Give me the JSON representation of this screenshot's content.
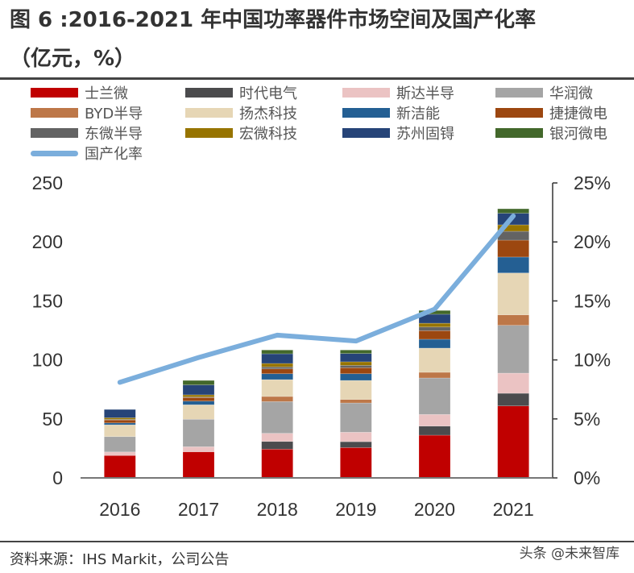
{
  "title_line1": "图 6 :2016-2021 年中国功率器件市场空间及国产化率",
  "title_line2": "（亿元，%）",
  "source": "资料来源：IHS Markit，公司公告",
  "watermark": "头条 @未来智库",
  "chart_data": {
    "type": "bar",
    "stacked": true,
    "categories": [
      "2016",
      "2017",
      "2018",
      "2019",
      "2020",
      "2021"
    ],
    "ylim": [
      0,
      250
    ],
    "yticks": [
      "0",
      "50",
      "100",
      "150",
      "200",
      "250"
    ],
    "y2lim": [
      0,
      25
    ],
    "y2ticks": [
      "0%",
      "5%",
      "10%",
      "15%",
      "20%",
      "25%"
    ],
    "legend_position": "top",
    "grid": false,
    "series": [
      {
        "name": "士兰微",
        "color": "#C00000",
        "values": [
          19,
          22.1,
          24.4,
          25.7,
          36.2,
          61
        ]
      },
      {
        "name": "时代电气",
        "color": "#4B4B4D",
        "values": [
          0,
          0,
          6.5,
          5,
          7.7,
          10.7
        ]
      },
      {
        "name": "斯达半导",
        "color": "#EBC3C3",
        "values": [
          3,
          4.3,
          6.9,
          8,
          9.9,
          17.1
        ]
      },
      {
        "name": "华润微",
        "color": "#A5A5A5",
        "values": [
          13,
          23.3,
          26.9,
          24.8,
          30.9,
          40.5
        ]
      },
      {
        "name": "BYD半导",
        "color": "#BD7748",
        "values": [
          0,
          0,
          4.3,
          3,
          4.8,
          8.9
        ]
      },
      {
        "name": "扬杰科技",
        "color": "#E6D6B5",
        "values": [
          10,
          12.3,
          14.3,
          16.1,
          20.5,
          35.5
        ]
      },
      {
        "name": "新洁能",
        "color": "#245F93",
        "values": [
          1.6,
          3.1,
          5,
          5.7,
          7.5,
          13.5
        ]
      },
      {
        "name": "捷捷微电",
        "color": "#9C4710",
        "values": [
          2.5,
          3,
          4.1,
          5.1,
          7.3,
          14.3
        ]
      },
      {
        "name": "东微半导",
        "color": "#636363",
        "values": [
          0.5,
          0.5,
          1.7,
          2,
          3.1,
          7.5
        ]
      },
      {
        "name": "宏微科技",
        "color": "#977400",
        "values": [
          1.4,
          1.8,
          2.9,
          3,
          3.2,
          5.5
        ]
      },
      {
        "name": "苏州固锝",
        "color": "#264478",
        "values": [
          7,
          8.4,
          8.2,
          7,
          7.6,
          9.8
        ]
      },
      {
        "name": "银河微电",
        "color": "#43682B",
        "values": [
          0,
          3.8,
          3.2,
          3,
          3.2,
          3.8
        ]
      }
    ],
    "line_series": {
      "name": "国产化率",
      "color": "#7BAEDC",
      "axis": "right",
      "values": [
        8.1,
        10.2,
        12.1,
        11.6,
        14.3,
        22.2
      ]
    }
  }
}
